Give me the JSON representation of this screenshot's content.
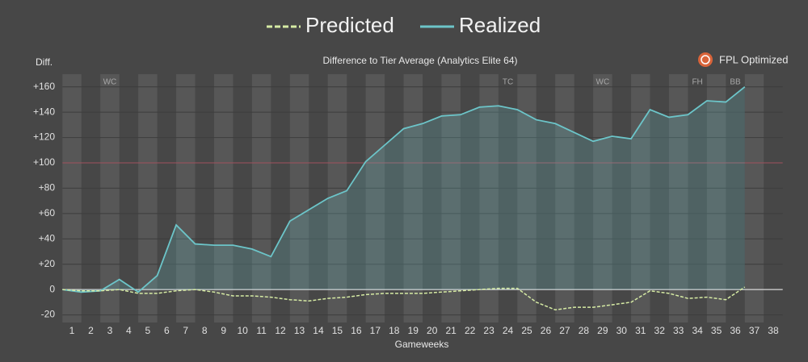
{
  "chart_data": {
    "type": "line",
    "title": "Difference to Tier Average (Analytics Elite 64)",
    "brand": "FPL Optimized",
    "y_label": "Diff.",
    "x_label": "Gameweeks",
    "x": [
      0.5,
      1.5,
      2.5,
      3.5,
      4.5,
      5.5,
      6.5,
      7.5,
      8.5,
      9.5,
      10.5,
      11.5,
      12.5,
      13.5,
      14.5,
      15.5,
      16.5,
      17.5,
      18.5,
      19.5,
      20.5,
      21.5,
      22.5,
      23.5,
      24.5,
      25.5,
      26.5,
      27.5,
      28.5,
      29.5,
      30.5,
      31.5,
      32.5,
      33.5,
      34.5,
      35.5,
      36.5
    ],
    "series": [
      {
        "name": "Predicted",
        "color": "#d6eba4",
        "dashed": true,
        "values": [
          0,
          -1,
          -1,
          0,
          -3,
          -3,
          -1,
          0,
          -2,
          -5,
          -5,
          -6,
          -8,
          -9,
          -7,
          -6,
          -4,
          -3,
          -3,
          -3,
          -2,
          -1,
          0,
          1,
          1,
          -10,
          -16,
          -14,
          -14,
          -12,
          -10,
          -1,
          -3,
          -7,
          -6,
          -8,
          2
        ]
      },
      {
        "name": "Realized",
        "color": "#6cc5c9",
        "fill": true,
        "values": [
          0,
          -2,
          -1,
          8,
          -2,
          11,
          51,
          36,
          35,
          35,
          32,
          26,
          54,
          63,
          72,
          78,
          101,
          114,
          127,
          131,
          137,
          138,
          144,
          145,
          142,
          134,
          131,
          124,
          117,
          121,
          119,
          142,
          136,
          138,
          149,
          148,
          160
        ]
      }
    ],
    "xlim": [
      0.5,
      38.5
    ],
    "xticks": [
      1,
      2,
      3,
      4,
      5,
      6,
      7,
      8,
      9,
      10,
      11,
      12,
      13,
      14,
      15,
      16,
      17,
      18,
      19,
      20,
      21,
      22,
      23,
      24,
      25,
      26,
      27,
      28,
      29,
      30,
      31,
      32,
      33,
      34,
      35,
      36,
      37,
      38
    ],
    "ylim": [
      -26,
      170
    ],
    "yticks": [
      -20,
      0,
      {
        "value": 20,
        "label": "+20"
      },
      {
        "value": 40,
        "label": "+40"
      },
      {
        "value": 60,
        "label": "+60"
      },
      {
        "value": 80,
        "label": "+80"
      },
      {
        "value": 100,
        "label": "+100"
      },
      {
        "value": 120,
        "label": "+120"
      },
      {
        "value": 140,
        "label": "+140"
      },
      {
        "value": 160,
        "label": "+160"
      }
    ],
    "reference_line": 100,
    "grid": true,
    "annotations": [
      {
        "x": 3,
        "text": "WC"
      },
      {
        "x": 24,
        "text": "TC"
      },
      {
        "x": 29,
        "text": "WC"
      },
      {
        "x": 34,
        "text": "FH"
      },
      {
        "x": 36,
        "text": "BB"
      }
    ]
  }
}
